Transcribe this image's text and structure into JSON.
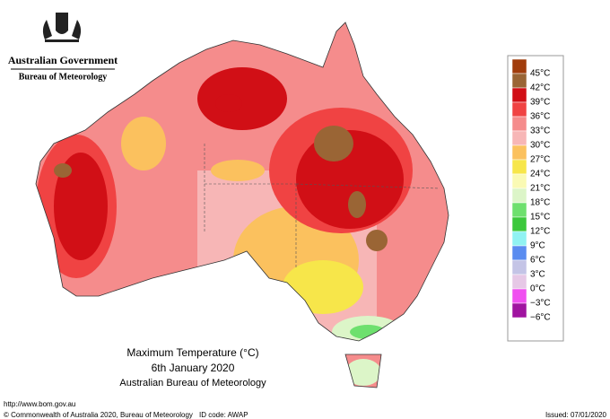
{
  "header": {
    "government": "Australian Government",
    "bureau": "Bureau of Meteorology"
  },
  "map": {
    "title": "Maximum Temperature (°C)",
    "date": "6th January 2020",
    "source": "Australian Bureau of Meteorology"
  },
  "legend": {
    "colors": [
      "#a13d0c",
      "#9a6535",
      "#d10f16",
      "#f04343",
      "#f58c8c",
      "#f7b6b6",
      "#fbc15e",
      "#f7e64a",
      "#fafab4",
      "#dcf5c8",
      "#6ee06e",
      "#3cc83c",
      "#90f2f2",
      "#5a8cf0",
      "#c4c4e6",
      "#e6c8e6",
      "#f050f0",
      "#a014a0"
    ],
    "labels": [
      "45°C",
      "42°C",
      "39°C",
      "36°C",
      "33°C",
      "30°C",
      "27°C",
      "24°C",
      "21°C",
      "18°C",
      "15°C",
      "12°C",
      "9°C",
      "6°C",
      "3°C",
      "0°C",
      "−3°C",
      "−6°C"
    ]
  },
  "footer": {
    "url": "http://www.bom.gov.au",
    "copyright": "© Commonwealth of Australia 2020, Bureau of Meteorology",
    "id": "ID code: AWAP",
    "issued": "Issued: 07/01/2020"
  }
}
